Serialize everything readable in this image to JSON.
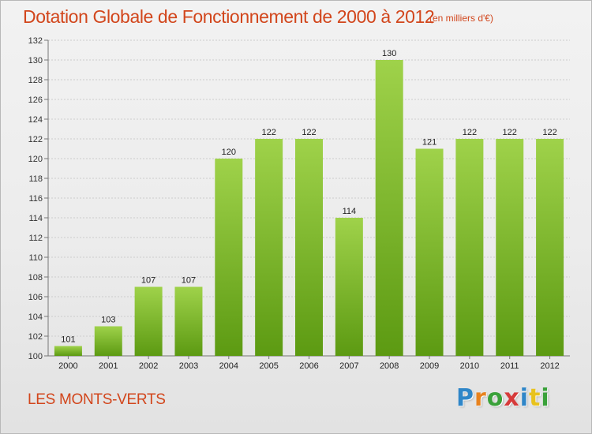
{
  "title": "Dotation Globale de Fonctionnement de 2000 à 2012",
  "subtitle": "(en milliers d'€)",
  "commune": "LES MONTS-VERTS",
  "logo": {
    "text": "Proxiti",
    "letters": [
      {
        "char": "P",
        "color": "#2f86c8"
      },
      {
        "char": "r",
        "color": "#e8821e"
      },
      {
        "char": "o",
        "color": "#3aa13a"
      },
      {
        "char": "x",
        "color": "#d63a3a"
      },
      {
        "char": "i",
        "color": "#2f86c8"
      },
      {
        "char": "t",
        "color": "#e8c21e"
      },
      {
        "char": "i",
        "color": "#3aa13a"
      }
    ]
  },
  "colors": {
    "title": "#d2461c",
    "bar_light": "#9fd24a",
    "bar_dark": "#5c9a12",
    "grid": "#cccccc"
  },
  "chart_data": {
    "type": "bar",
    "categories": [
      "2000",
      "2001",
      "2002",
      "2003",
      "2004",
      "2005",
      "2006",
      "2007",
      "2008",
      "2009",
      "2010",
      "2011",
      "2012"
    ],
    "values": [
      101,
      103,
      107,
      107,
      120,
      122,
      122,
      114,
      130,
      121,
      122,
      122,
      122
    ],
    "ylim": [
      100,
      132
    ],
    "yticks": [
      100,
      102,
      104,
      106,
      108,
      110,
      112,
      114,
      116,
      118,
      120,
      122,
      124,
      126,
      128,
      130,
      132
    ],
    "grid": "horizontal",
    "legend": "none"
  }
}
